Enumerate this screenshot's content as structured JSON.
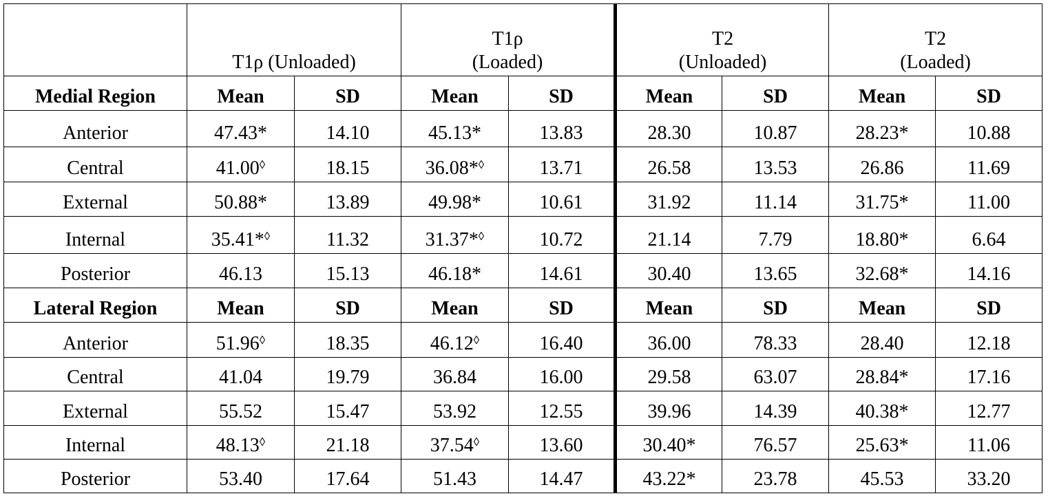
{
  "header": {
    "groups": [
      {
        "lines": [
          "T1ρ  (Unloaded)"
        ]
      },
      {
        "lines": [
          "T1ρ",
          "(Loaded)"
        ]
      },
      {
        "lines": [
          "T2",
          "(Unloaded)"
        ]
      },
      {
        "lines": [
          "T2",
          "(Loaded)"
        ]
      }
    ]
  },
  "sections": [
    {
      "title": "Medial Region",
      "subheaders": [
        "Mean",
        "SD",
        "Mean",
        "SD",
        "Mean",
        "SD",
        "Mean",
        "SD"
      ],
      "rows": [
        {
          "label": "Anterior",
          "cells": [
            "47.43*",
            "14.10",
            "45.13*",
            "13.83",
            "28.30",
            "10.87",
            "28.23*",
            "10.88"
          ]
        },
        {
          "label": "Central",
          "cells": [
            "41.00◊",
            "18.15",
            "36.08*◊",
            "13.71",
            "26.58",
            "13.53",
            "26.86",
            "11.69"
          ]
        },
        {
          "label": "External",
          "cells": [
            "50.88*",
            "13.89",
            "49.98*",
            "10.61",
            "31.92",
            "11.14",
            "31.75*",
            "11.00"
          ]
        },
        {
          "label": "Internal",
          "cells": [
            "35.41*◊",
            "11.32",
            "31.37*◊",
            "10.72",
            "21.14",
            "7.79",
            "18.80*",
            "6.64"
          ]
        },
        {
          "label": "Posterior",
          "cells": [
            "46.13",
            "15.13",
            "46.18*",
            "14.61",
            "30.40",
            "13.65",
            "32.68*",
            "14.16"
          ]
        }
      ]
    },
    {
      "title": "Lateral Region",
      "subheaders": [
        "Mean",
        "SD",
        "Mean",
        "SD",
        "Mean",
        "SD",
        "Mean",
        "SD"
      ],
      "rows": [
        {
          "label": "Anterior",
          "cells": [
            "51.96◊",
            "18.35",
            "46.12◊",
            "16.40",
            "36.00",
            "78.33",
            "28.40",
            "12.18"
          ]
        },
        {
          "label": "Central",
          "cells": [
            "41.04",
            "19.79",
            "36.84",
            "16.00",
            "29.58",
            "63.07",
            "28.84*",
            "17.16"
          ]
        },
        {
          "label": "External",
          "cells": [
            "55.52",
            "15.47",
            "53.92",
            "12.55",
            "39.96",
            "14.39",
            "40.38*",
            "12.77"
          ]
        },
        {
          "label": "Internal",
          "cells": [
            "48.13◊",
            "21.18",
            "37.54◊",
            "13.60",
            "30.40*",
            "76.57",
            "25.63*",
            "11.06"
          ]
        },
        {
          "label": "Posterior",
          "cells": [
            "53.40",
            "17.64",
            "51.43",
            "14.47",
            "43.22*",
            "23.78",
            "45.53",
            "33.20"
          ]
        }
      ]
    }
  ]
}
